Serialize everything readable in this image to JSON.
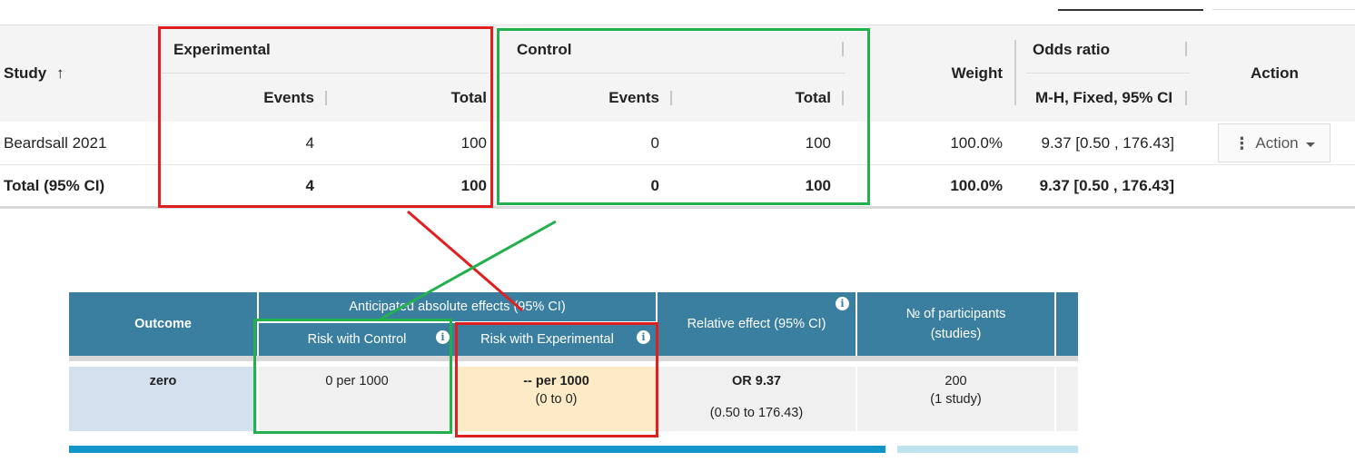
{
  "review_table": {
    "headers": {
      "study": "Study",
      "sort_arrow": "↑",
      "experimental": "Experimental",
      "control": "Control",
      "events": "Events",
      "total": "Total",
      "weight": "Weight",
      "odds_ratio": "Odds ratio",
      "method": "M-H, Fixed, 95% CI",
      "action": "Action"
    },
    "rows": [
      {
        "study": "Beardsall 2021",
        "exp_events": "4",
        "exp_total": "100",
        "ctrl_events": "0",
        "ctrl_total": "100",
        "weight": "100.0%",
        "or": "9.37 [0.50 , 176.43]",
        "action_label": "Action"
      }
    ],
    "total_row": {
      "label": "Total (95% CI)",
      "exp_events": "4",
      "exp_total": "100",
      "ctrl_events": "0",
      "ctrl_total": "100",
      "weight": "100.0%",
      "or": "9.37 [0.50 , 176.43]"
    }
  },
  "sof_table": {
    "headers": {
      "outcome": "Outcome",
      "anticipated": "Anticipated absolute effects (95% CI)",
      "risk_control": "Risk with Control",
      "risk_experimental": "Risk with Experimental",
      "relative_effect": "Relative effect (95% CI)",
      "participants_line1": "№ of participants",
      "participants_line2": "(studies)"
    },
    "row": {
      "outcome": "zero",
      "risk_control": "0 per 1000",
      "risk_experimental": "-- per 1000",
      "risk_experimental_ci": "(0 to 0)",
      "relative_effect": "OR 9.37",
      "relative_ci": "(0.50 to 176.43)",
      "participants": "200",
      "studies": "(1 study)"
    }
  },
  "colors": {
    "sof_header": "#3a7fa0",
    "annotation_red": "#e02020",
    "annotation_green": "#22b14c",
    "experimental_highlight": "#fdebc8",
    "outcome_cell": "#d3e1ee"
  }
}
